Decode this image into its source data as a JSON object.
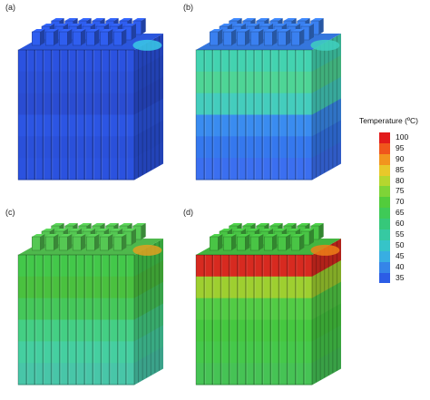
{
  "panels": [
    {
      "label": "(a)",
      "bands": [
        "#2b52e0",
        "#2a4fd8",
        "#2a4cd2",
        "#2c55e3",
        "#2a50da",
        "#2b52df"
      ],
      "top_color": "#2f5ef0",
      "accent_color": "#39c9e6"
    },
    {
      "label": "(b)",
      "bands": [
        "#43d3b0",
        "#4ed596",
        "#44cdbd",
        "#3a8cf0",
        "#3578ee",
        "#3b6ff0"
      ],
      "top_color": "#3a80f0",
      "accent_color": "#3fd0c0"
    },
    {
      "label": "(c)",
      "bands": [
        "#43c84a",
        "#4ac13f",
        "#45c85a",
        "#44cf84",
        "#45cfa0",
        "#48c6a8"
      ],
      "top_color": "#55c853",
      "accent_color": "#e0a020"
    },
    {
      "label": "(d)",
      "bands": [
        "#d72a20",
        "#9ecf30",
        "#52cc45",
        "#45c840",
        "#45c94a",
        "#46c355"
      ],
      "top_color": "#49c545",
      "accent_color": "#ef7f17"
    }
  ],
  "legend": {
    "title": "Temperature (ºC)",
    "ticks": [
      "100",
      "95",
      "90",
      "85",
      "80",
      "75",
      "70",
      "65",
      "60",
      "55",
      "50",
      "45",
      "40",
      "35"
    ],
    "colors": [
      "#e21b1b",
      "#f0561c",
      "#f2951e",
      "#e8c82a",
      "#b5d62f",
      "#7ed437",
      "#52cc3c",
      "#3fca57",
      "#36c87a",
      "#36c9a2",
      "#36c4c8",
      "#38aee2",
      "#3585e8",
      "#2c5de6"
    ]
  }
}
